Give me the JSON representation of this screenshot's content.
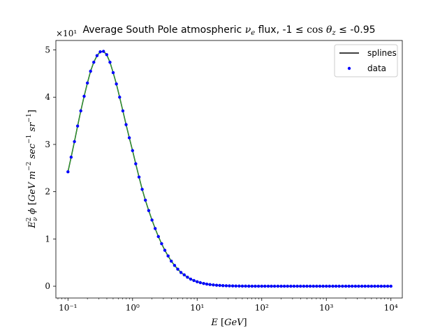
{
  "chart_data": {
    "type": "line",
    "title": "Average South Pole atmospheric νₑ flux, -1 ≤ cos θ_z ≤ -0.95",
    "xlabel": "E [GeV]",
    "ylabel": "E²_ν ϕ [GeV m⁻² sec⁻¹ sr⁻¹]",
    "x_scale": "log",
    "xlim": [
      0.065,
      15000
    ],
    "ylim": [
      -0.25,
      5.2
    ],
    "y_multiplier": "×10¹",
    "x_ticks": [
      0.1,
      1,
      10,
      100,
      1000,
      10000
    ],
    "x_tick_labels": [
      "10⁻¹",
      "10⁰",
      "10¹",
      "10²",
      "10³",
      "10⁴"
    ],
    "y_ticks": [
      0,
      1,
      2,
      3,
      4,
      5
    ],
    "y_tick_labels": [
      "0",
      "1",
      "2",
      "3",
      "4",
      "5"
    ],
    "legend": {
      "placement": "top-right",
      "entries": [
        "splines",
        "data"
      ]
    },
    "grid": false,
    "series": [
      {
        "name": "splines",
        "style": "line",
        "color": "#000000",
        "x": [
          0.1,
          0.112,
          0.126,
          0.141,
          0.158,
          0.178,
          0.2,
          0.224,
          0.251,
          0.282,
          0.316,
          0.355,
          0.398,
          0.447,
          0.501,
          0.562,
          0.631,
          0.708,
          0.794,
          0.891,
          1.0,
          1.12,
          1.26,
          1.41,
          1.58,
          1.78,
          2.0,
          2.24,
          2.51,
          2.82,
          3.16,
          3.55,
          3.98,
          4.47,
          5.01,
          5.62,
          6.31,
          7.08,
          7.94,
          8.91,
          10.0,
          11.2,
          12.6,
          14.1,
          15.8,
          17.8,
          20.0,
          22.4,
          25.1,
          28.2,
          31.6,
          35.5,
          39.8,
          44.7,
          50.1,
          56.2,
          63.1,
          70.8,
          79.4,
          89.1,
          100,
          112,
          126,
          141,
          158,
          178,
          200,
          224,
          251,
          282,
          316,
          355,
          398,
          447,
          501,
          562,
          631,
          708,
          794,
          891,
          1000,
          1120,
          1260,
          1410,
          1580,
          1780,
          2000,
          2240,
          2510,
          2820,
          3160,
          3550,
          3980,
          4470,
          5010,
          5620,
          6310,
          7080,
          7940,
          8910,
          10000
        ],
        "values": [
          2.42,
          2.73,
          3.06,
          3.39,
          3.71,
          4.02,
          4.3,
          4.55,
          4.74,
          4.88,
          4.96,
          4.97,
          4.9,
          4.74,
          4.52,
          4.28,
          4.0,
          3.71,
          3.42,
          3.14,
          2.87,
          2.59,
          2.31,
          2.05,
          1.82,
          1.6,
          1.4,
          1.22,
          1.05,
          0.9,
          0.76,
          0.64,
          0.53,
          0.44,
          0.36,
          0.29,
          0.24,
          0.19,
          0.15,
          0.12,
          0.095,
          0.075,
          0.058,
          0.045,
          0.035,
          0.027,
          0.021,
          0.016,
          0.012,
          0.009,
          0.007,
          0.005,
          0.004,
          0.003,
          0.002,
          0.0015,
          0.001,
          0.0008,
          0.0006,
          0.0005,
          0.0004,
          0.0003,
          0.0002,
          0.0002,
          0.0001,
          0.0001,
          0.0001,
          0.0001,
          0,
          0,
          0,
          0,
          0,
          0,
          0,
          0,
          0,
          0,
          0,
          0,
          0,
          0,
          0,
          0,
          0,
          0,
          0,
          0,
          0,
          0,
          0,
          0,
          0,
          0,
          0,
          0,
          0,
          0,
          0,
          0,
          0
        ]
      },
      {
        "name": "data",
        "style": "scatter",
        "color": "#0000ff",
        "x": [
          0.1,
          0.112,
          0.126,
          0.141,
          0.158,
          0.178,
          0.2,
          0.224,
          0.251,
          0.282,
          0.316,
          0.355,
          0.398,
          0.447,
          0.501,
          0.562,
          0.631,
          0.708,
          0.794,
          0.891,
          1.0,
          1.12,
          1.26,
          1.41,
          1.58,
          1.78,
          2.0,
          2.24,
          2.51,
          2.82,
          3.16,
          3.55,
          3.98,
          4.47,
          5.01,
          5.62,
          6.31,
          7.08,
          7.94,
          8.91,
          10.0,
          11.2,
          12.6,
          14.1,
          15.8,
          17.8,
          20.0,
          22.4,
          25.1,
          28.2,
          31.6,
          35.5,
          39.8,
          44.7,
          50.1,
          56.2,
          63.1,
          70.8,
          79.4,
          89.1,
          100,
          112,
          126,
          141,
          158,
          178,
          200,
          224,
          251,
          282,
          316,
          355,
          398,
          447,
          501,
          562,
          631,
          708,
          794,
          891,
          1000,
          1120,
          1260,
          1410,
          1580,
          1780,
          2000,
          2240,
          2510,
          2820,
          3160,
          3550,
          3980,
          4470,
          5010,
          5620,
          6310,
          7080,
          7940,
          8910,
          10000
        ],
        "values": [
          2.42,
          2.73,
          3.06,
          3.39,
          3.71,
          4.02,
          4.3,
          4.55,
          4.74,
          4.88,
          4.96,
          4.97,
          4.9,
          4.74,
          4.52,
          4.28,
          4.0,
          3.71,
          3.42,
          3.14,
          2.87,
          2.59,
          2.31,
          2.05,
          1.82,
          1.6,
          1.4,
          1.22,
          1.05,
          0.9,
          0.76,
          0.64,
          0.53,
          0.44,
          0.36,
          0.29,
          0.24,
          0.19,
          0.15,
          0.12,
          0.095,
          0.075,
          0.058,
          0.045,
          0.035,
          0.027,
          0.021,
          0.016,
          0.012,
          0.009,
          0.007,
          0.005,
          0.004,
          0.003,
          0.002,
          0.0015,
          0.001,
          0.0008,
          0.0006,
          0.0005,
          0.0004,
          0.0003,
          0.0002,
          0.0002,
          0.0001,
          0.0001,
          0.0001,
          0.0001,
          0,
          0,
          0,
          0,
          0,
          0,
          0,
          0,
          0,
          0,
          0,
          0,
          0,
          0,
          0,
          0,
          0,
          0,
          0,
          0,
          0,
          0,
          0,
          0,
          0,
          0,
          0,
          0,
          0,
          0,
          0,
          0,
          0
        ]
      }
    ],
    "colors": {
      "spline_overlay": "#2ca02c",
      "axes": "#000000",
      "background": "#ffffff"
    }
  }
}
